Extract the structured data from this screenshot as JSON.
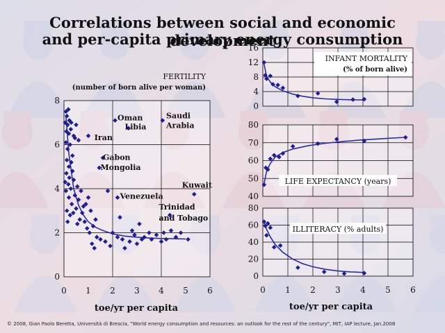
{
  "title_line1": "Correlations between social and economic development",
  "title_line2": "and per-capita primary energy consumption",
  "footer": "© 2008, Gian Paolo Beretta, Università di Brescia, \"World energy consumption and resources: an outlook for the rest of the century\", MIT, IAP lecture, Jan.2008",
  "colors": {
    "marker": "#1f1f8f",
    "curve": "#2b2ba8",
    "grid": "#000000",
    "text": "#111111"
  },
  "chart_data": [
    {
      "id": "fertility",
      "type": "scatter",
      "title": "FERTILITY",
      "subtitle": "(number of born alive per woman)",
      "xlabel": "toe/yr per capita",
      "ylabel": "",
      "xlim": [
        0,
        6
      ],
      "ylim": [
        0,
        8
      ],
      "xticks": [
        0,
        1,
        2,
        3,
        4,
        5,
        6
      ],
      "yticks": [
        0,
        2,
        4,
        6,
        8
      ],
      "grid": true,
      "annotations": [
        {
          "label": "Oman",
          "x": 2.2,
          "y": 7.1
        },
        {
          "label": "Libia",
          "x": 2.5,
          "y": 6.7
        },
        {
          "label": "Saudi",
          "x": 4.2,
          "y": 7.2
        },
        {
          "label": "Arabia",
          "x": 4.2,
          "y": 6.75
        },
        {
          "label": "Iran",
          "x": 1.25,
          "y": 6.2
        },
        {
          "label": "Gabon",
          "x": 1.6,
          "y": 5.3
        },
        {
          "label": "Mongolia",
          "x": 1.5,
          "y": 4.85
        },
        {
          "label": "Kuwait",
          "x": 4.85,
          "y": 4.05
        },
        {
          "label": "Venezuela",
          "x": 2.3,
          "y": 3.55
        },
        {
          "label": "Trinidad",
          "x": 3.9,
          "y": 3.05
        },
        {
          "label": "and Tobago",
          "x": 3.9,
          "y": 2.55
        }
      ],
      "points": [
        [
          0.08,
          7.5
        ],
        [
          0.12,
          7.3
        ],
        [
          0.18,
          7.6
        ],
        [
          0.05,
          7.0
        ],
        [
          0.15,
          6.9
        ],
        [
          0.22,
          7.1
        ],
        [
          0.3,
          7.0
        ],
        [
          0.1,
          6.6
        ],
        [
          0.2,
          6.5
        ],
        [
          0.28,
          6.7
        ],
        [
          0.4,
          6.4
        ],
        [
          0.5,
          6.9
        ],
        [
          0.6,
          6.2
        ],
        [
          0.08,
          6.1
        ],
        [
          0.15,
          5.8
        ],
        [
          0.25,
          6.0
        ],
        [
          0.35,
          5.5
        ],
        [
          0.45,
          6.3
        ],
        [
          0.12,
          5.3
        ],
        [
          0.2,
          5.0
        ],
        [
          0.3,
          5.2
        ],
        [
          0.1,
          4.7
        ],
        [
          0.22,
          4.5
        ],
        [
          0.35,
          4.8
        ],
        [
          0.05,
          4.3
        ],
        [
          0.18,
          4.2
        ],
        [
          0.28,
          4.0
        ],
        [
          0.4,
          4.4
        ],
        [
          0.55,
          4.1
        ],
        [
          0.08,
          3.9
        ],
        [
          0.2,
          3.6
        ],
        [
          0.32,
          3.3
        ],
        [
          0.45,
          3.7
        ],
        [
          0.6,
          3.5
        ],
        [
          0.7,
          3.9
        ],
        [
          0.8,
          3.2
        ],
        [
          0.12,
          3.0
        ],
        [
          0.25,
          2.8
        ],
        [
          0.38,
          2.9
        ],
        [
          0.5,
          3.1
        ],
        [
          0.65,
          2.6
        ],
        [
          0.75,
          2.9
        ],
        [
          0.9,
          3.3
        ],
        [
          1.0,
          3.6
        ],
        [
          1.1,
          3.0
        ],
        [
          0.85,
          2.5
        ],
        [
          0.95,
          2.2
        ],
        [
          1.05,
          2.0
        ],
        [
          1.2,
          2.3
        ],
        [
          1.3,
          2.6
        ],
        [
          0.15,
          2.5
        ],
        [
          1.15,
          1.5
        ],
        [
          1.25,
          1.3
        ],
        [
          1.35,
          1.8
        ],
        [
          1.5,
          1.7
        ],
        [
          1.7,
          1.6
        ],
        [
          1.9,
          1.4
        ],
        [
          2.0,
          2.0
        ],
        [
          2.2,
          1.8
        ],
        [
          2.4,
          1.7
        ],
        [
          2.5,
          1.3
        ],
        [
          2.7,
          1.6
        ],
        [
          2.8,
          2.1
        ],
        [
          2.9,
          1.9
        ],
        [
          3.0,
          1.5
        ],
        [
          3.1,
          2.4
        ],
        [
          3.2,
          1.7
        ],
        [
          3.3,
          1.8
        ],
        [
          3.5,
          2.0
        ],
        [
          3.6,
          1.7
        ],
        [
          3.8,
          1.9
        ],
        [
          4.0,
          1.6
        ],
        [
          4.1,
          2.0
        ],
        [
          4.2,
          1.7
        ],
        [
          4.4,
          2.1
        ],
        [
          4.6,
          1.8
        ],
        [
          4.8,
          2.0
        ],
        [
          5.1,
          1.7
        ],
        [
          1.0,
          6.4
        ],
        [
          1.6,
          5.4
        ],
        [
          1.45,
          4.95
        ],
        [
          2.1,
          7.1
        ],
        [
          2.65,
          6.75
        ],
        [
          4.05,
          7.1
        ],
        [
          2.2,
          3.6
        ],
        [
          4.35,
          2.8
        ],
        [
          5.35,
          3.75
        ],
        [
          1.8,
          3.9
        ],
        [
          2.3,
          2.7
        ],
        [
          0.55,
          2.4
        ]
      ],
      "fit": [
        [
          0.08,
          7.3
        ],
        [
          0.2,
          5.6
        ],
        [
          0.4,
          4.0
        ],
        [
          0.6,
          3.25
        ],
        [
          0.8,
          2.8
        ],
        [
          1.0,
          2.5
        ],
        [
          1.3,
          2.25
        ],
        [
          1.6,
          2.1
        ],
        [
          2.0,
          1.95
        ],
        [
          2.5,
          1.85
        ],
        [
          3.0,
          1.8
        ],
        [
          3.5,
          1.76
        ],
        [
          4.0,
          1.74
        ],
        [
          4.5,
          1.73
        ],
        [
          5.0,
          1.72
        ]
      ]
    },
    {
      "id": "infant",
      "type": "scatter",
      "title": "INFANT MORTALITY",
      "subtitle": "(% of born alive)",
      "xlabel": "",
      "ylabel": "",
      "xlim": [
        0,
        6
      ],
      "ylim": [
        0,
        16
      ],
      "xticks": [],
      "yticks": [
        0,
        4,
        8,
        12,
        16
      ],
      "grid": true,
      "points": [
        [
          0.05,
          12.0
        ],
        [
          0.1,
          8.5
        ],
        [
          0.15,
          7.5
        ],
        [
          0.3,
          8.3
        ],
        [
          0.4,
          6.0
        ],
        [
          0.6,
          5.8
        ],
        [
          0.8,
          5.0
        ],
        [
          1.4,
          2.8
        ],
        [
          2.2,
          3.5
        ],
        [
          2.95,
          1.2
        ],
        [
          3.6,
          1.8
        ],
        [
          4.05,
          1.9
        ]
      ],
      "fit": [
        [
          0.05,
          11.5
        ],
        [
          0.15,
          8.2
        ],
        [
          0.3,
          6.6
        ],
        [
          0.5,
          5.3
        ],
        [
          0.8,
          4.2
        ],
        [
          1.2,
          3.3
        ],
        [
          1.6,
          2.7
        ],
        [
          2.0,
          2.3
        ],
        [
          2.5,
          2.0
        ],
        [
          3.0,
          1.85
        ],
        [
          3.5,
          1.75
        ],
        [
          4.0,
          1.7
        ]
      ]
    },
    {
      "id": "life",
      "type": "scatter",
      "title": "LIFE EXPECTANCY (years)",
      "subtitle": "",
      "xlabel": "",
      "ylabel": "",
      "xlim": [
        0,
        6
      ],
      "ylim": [
        40,
        80
      ],
      "xticks": [],
      "yticks": [
        40,
        50,
        60,
        70,
        80
      ],
      "grid": true,
      "points": [
        [
          0.05,
          46.5
        ],
        [
          0.12,
          56
        ],
        [
          0.2,
          55
        ],
        [
          0.3,
          61
        ],
        [
          0.45,
          63
        ],
        [
          0.65,
          62
        ],
        [
          0.8,
          64
        ],
        [
          1.2,
          68
        ],
        [
          2.2,
          69.5
        ],
        [
          2.95,
          72
        ],
        [
          4.05,
          71
        ],
        [
          5.7,
          73
        ]
      ],
      "fit": [
        [
          0.05,
          47
        ],
        [
          0.15,
          54
        ],
        [
          0.3,
          58.5
        ],
        [
          0.5,
          62
        ],
        [
          0.8,
          64.5
        ],
        [
          1.2,
          66.5
        ],
        [
          1.8,
          68.3
        ],
        [
          2.5,
          69.7
        ],
        [
          3.2,
          70.7
        ],
        [
          4.0,
          71.6
        ],
        [
          4.8,
          72.3
        ],
        [
          5.7,
          73
        ]
      ]
    },
    {
      "id": "illiteracy",
      "type": "scatter",
      "title": "ILLITERACY (% adults)",
      "subtitle": "",
      "xlabel": "toe/yr per capita",
      "ylabel": "",
      "xlim": [
        0,
        6
      ],
      "ylim": [
        0,
        80
      ],
      "xticks": [
        0,
        1,
        2,
        3,
        4,
        5,
        6
      ],
      "yticks": [
        0,
        20,
        40,
        60,
        80
      ],
      "grid": true,
      "points": [
        [
          0.05,
          64
        ],
        [
          0.1,
          59
        ],
        [
          0.15,
          48
        ],
        [
          0.2,
          62
        ],
        [
          0.3,
          57
        ],
        [
          0.45,
          34
        ],
        [
          0.7,
          36
        ],
        [
          1.4,
          10
        ],
        [
          2.45,
          5
        ],
        [
          3.25,
          3
        ],
        [
          4.05,
          3.5
        ]
      ],
      "fit": [
        [
          0.05,
          63
        ],
        [
          0.15,
          55
        ],
        [
          0.3,
          46
        ],
        [
          0.5,
          37
        ],
        [
          0.8,
          28
        ],
        [
          1.2,
          20
        ],
        [
          1.6,
          14.5
        ],
        [
          2.0,
          11
        ],
        [
          2.5,
          8
        ],
        [
          3.0,
          6
        ],
        [
          3.5,
          5
        ],
        [
          4.0,
          4.3
        ]
      ]
    }
  ]
}
